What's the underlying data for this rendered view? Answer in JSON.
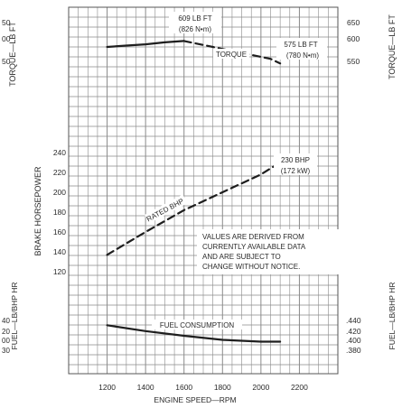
{
  "chart_data": {
    "type": "line",
    "x_axis": {
      "label": "ENGINE SPEED—RPM",
      "range": [
        1000,
        2400
      ],
      "ticks": [
        1200,
        1400,
        1600,
        1800,
        2000,
        2200
      ]
    },
    "torque_axis": {
      "left_label": "TORQUE—LB FT",
      "right_label": "TORQUE—LB FT",
      "range": [
        540,
        660
      ],
      "left_ticks": [
        "50",
        "00",
        "50"
      ],
      "right_ticks": [
        "650",
        "600",
        "550"
      ]
    },
    "power_axis": {
      "label": "BRAKE HORSEPOWER",
      "range": [
        110,
        250
      ],
      "ticks": [
        240,
        220,
        200,
        180,
        160,
        140,
        120
      ]
    },
    "fuel_axis": {
      "left_label": "FUEL—LB/BHP HR",
      "right_label": "FUEL—LB/BHP HR",
      "range": [
        0.37,
        0.45
      ],
      "left_ticks": [
        "40",
        "20",
        "00",
        "30"
      ],
      "right_ticks": [
        ".440",
        ".420",
        ".400",
        ".380"
      ]
    },
    "series": [
      {
        "name": "TORQUE",
        "style": "solid",
        "points": [
          [
            1200,
            600
          ],
          [
            1300,
            602
          ],
          [
            1400,
            604
          ],
          [
            1500,
            607
          ],
          [
            1600,
            609
          ]
        ]
      },
      {
        "name": "TORQUE",
        "style": "dashed",
        "points": [
          [
            1600,
            609
          ],
          [
            1750,
            600
          ],
          [
            1900,
            591
          ],
          [
            2050,
            582
          ],
          [
            2100,
            575
          ]
        ]
      },
      {
        "name": "RATED BHP",
        "style": "dashed",
        "points": [
          [
            1200,
            137
          ],
          [
            1400,
            160
          ],
          [
            1600,
            182
          ],
          [
            1800,
            200
          ],
          [
            2000,
            218
          ],
          [
            2100,
            230
          ]
        ]
      },
      {
        "name": "FUEL CONSUMPTION",
        "style": "solid",
        "points": [
          [
            1200,
            0.428
          ],
          [
            1400,
            0.418
          ],
          [
            1600,
            0.41
          ],
          [
            1800,
            0.403
          ],
          [
            2000,
            0.4
          ],
          [
            2100,
            0.4
          ]
        ]
      }
    ],
    "annotations": {
      "peak_torque": [
        "609 LB FT",
        "(826 N•m)"
      ],
      "rated_torque": [
        "575 LB FT",
        "(780 N•m)"
      ],
      "torque_label": "TORQUE",
      "rated_bhp_value": [
        "230 BHP",
        "(172 kW)"
      ],
      "rated_bhp_label": "RATED BHP",
      "fuel_label": "FUEL CONSUMPTION",
      "note": [
        "VALUES ARE DERIVED FROM",
        "CURRENTLY AVAILABLE DATA",
        "AND ARE SUBJECT TO",
        "CHANGE WITHOUT NOTICE."
      ]
    },
    "grid": true,
    "colors": {
      "grid": "#8a8a8a",
      "line": "#1e1e1e",
      "text": "#2a2a2a"
    }
  }
}
